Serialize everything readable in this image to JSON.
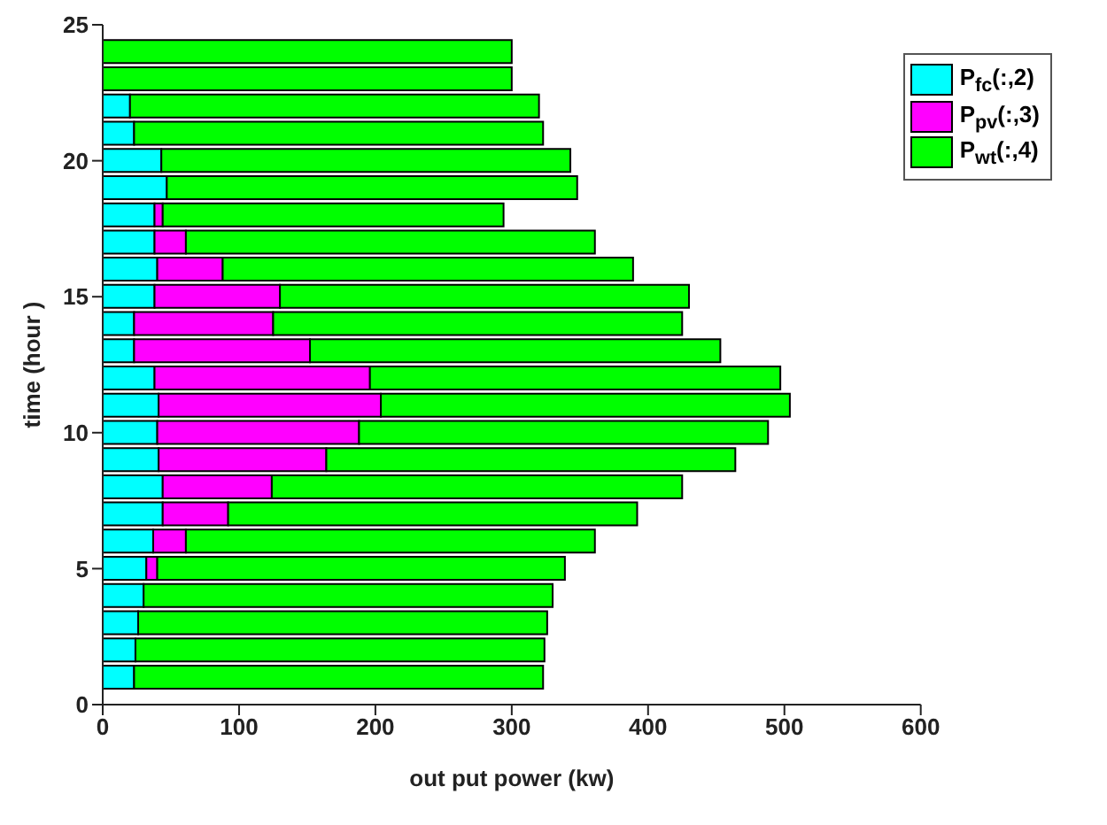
{
  "chart_data": {
    "type": "bar",
    "orientation": "horizontal",
    "stacked": true,
    "xlabel": "out put power (kw)",
    "ylabel": "time (hour )",
    "x": [
      1,
      2,
      3,
      4,
      5,
      6,
      7,
      8,
      9,
      10,
      11,
      12,
      13,
      14,
      15,
      16,
      17,
      18,
      19,
      20,
      21,
      22,
      23,
      24
    ],
    "series": [
      {
        "name": "P$_{fc}$(:,2)",
        "color": "#00ffff",
        "values": [
          23,
          24,
          26,
          30,
          32,
          37,
          44,
          44,
          41,
          40,
          41,
          38,
          23,
          23,
          38,
          40,
          38,
          38,
          47,
          43,
          23,
          20,
          0,
          0
        ]
      },
      {
        "name": "P$_{pv}$(:,3)",
        "color": "#ff00ff",
        "values": [
          0,
          0,
          0,
          0,
          8,
          24,
          48,
          80,
          123,
          148,
          163,
          158,
          129,
          102,
          92,
          48,
          23,
          6,
          0,
          0,
          0,
          0,
          0,
          0
        ]
      },
      {
        "name": "P$_{wt}$(:,4)",
        "color": "#00ff00",
        "values": [
          300,
          300,
          300,
          300,
          299,
          300,
          300,
          301,
          300,
          300,
          300,
          301,
          301,
          300,
          300,
          301,
          300,
          250,
          301,
          300,
          300,
          300,
          300,
          300
        ]
      }
    ],
    "xlim": [
      0,
      600
    ],
    "xticks": [
      0,
      100,
      200,
      300,
      400,
      500,
      600
    ],
    "ylim": [
      0,
      25
    ],
    "yticks": [
      0,
      5,
      10,
      15,
      20,
      25
    ],
    "legend": "top right"
  }
}
